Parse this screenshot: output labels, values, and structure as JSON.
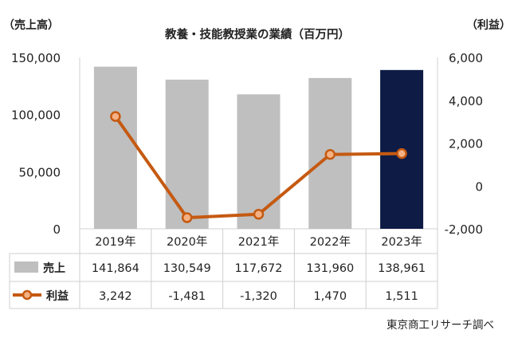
{
  "chart_data": {
    "type": "bar",
    "title": "教養・技能教授業の業績（百万円）",
    "categories": [
      "2019年",
      "2020年",
      "2021年",
      "2022年",
      "2023年"
    ],
    "y_left": {
      "label": "（売上高）",
      "ticks": [
        "150,000",
        "100,000",
        "50,000",
        "0"
      ],
      "ylim": [
        0,
        150000
      ]
    },
    "y_right": {
      "label": "（利益）",
      "ticks": [
        "6,000",
        "4,000",
        "2,000",
        "0",
        "-2,000"
      ],
      "ylim": [
        -2000,
        6000
      ]
    },
    "series": [
      {
        "name": "売上",
        "kind": "bar",
        "axis": "left",
        "values": [
          141864,
          130549,
          117672,
          131960,
          138961
        ],
        "labels": [
          "141,864",
          "130,549",
          "117,672",
          "131,960",
          "138,961"
        ],
        "color": "#bfbfbf",
        "highlight_color": "#0d1b45",
        "highlight_index": 4
      },
      {
        "name": "利益",
        "kind": "line",
        "axis": "right",
        "values": [
          3242,
          -1481,
          -1320,
          1470,
          1511
        ],
        "labels": [
          "3,242",
          "-1,481",
          "-1,320",
          "1,470",
          "1,511"
        ],
        "color": "#c55a11"
      }
    ],
    "source": "東京商工リサーチ調べ",
    "negative_tick_color": "#c00000"
  }
}
